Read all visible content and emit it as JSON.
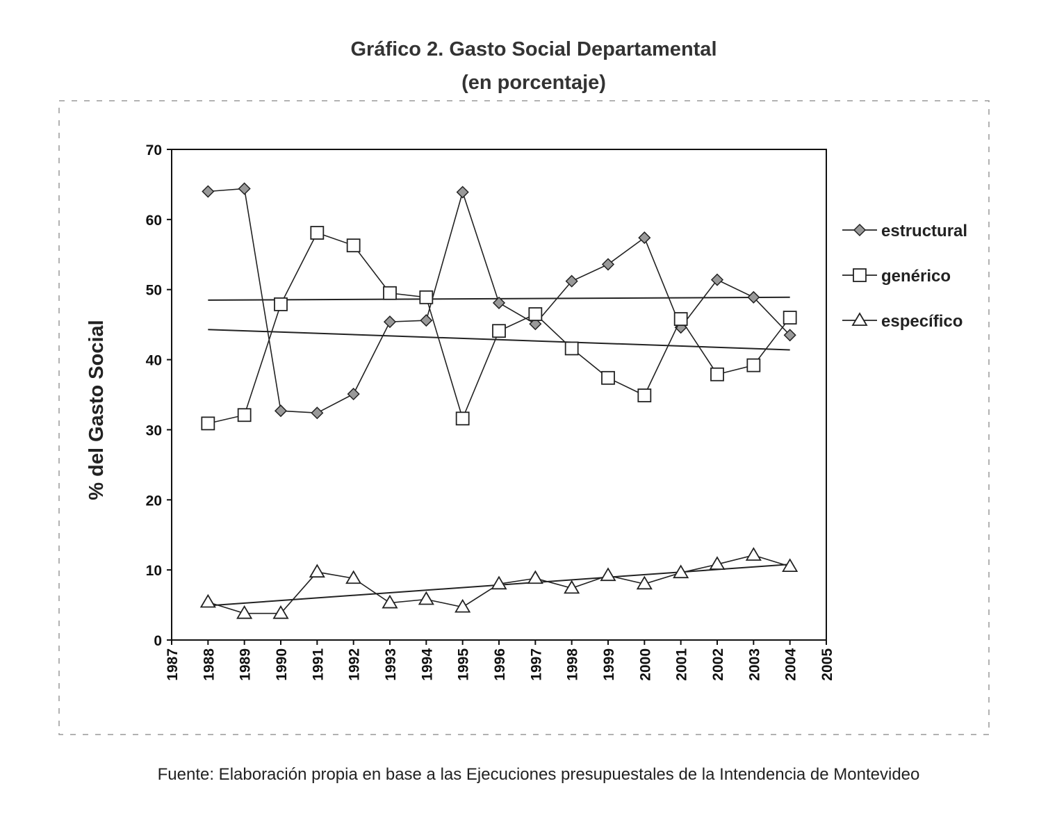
{
  "chart_data": {
    "type": "line",
    "title": "Gráfico 2. Gasto Social Departamental",
    "subtitle": "(en porcentaje)",
    "xlabel": "",
    "ylabel": "% del Gasto Social",
    "xlim": [
      1987,
      2005
    ],
    "ylim": [
      0,
      70
    ],
    "xticks": [
      1987,
      1988,
      1989,
      1990,
      1991,
      1992,
      1993,
      1994,
      1995,
      1996,
      1997,
      1998,
      1999,
      2000,
      2001,
      2002,
      2003,
      2004,
      2005
    ],
    "yticks": [
      0,
      10,
      20,
      30,
      40,
      50,
      60,
      70
    ],
    "grid": false,
    "legend_position": "right",
    "x": [
      1988,
      1989,
      1990,
      1991,
      1992,
      1993,
      1994,
      1995,
      1996,
      1997,
      1998,
      1999,
      2000,
      2001,
      2002,
      2003,
      2004
    ],
    "series": [
      {
        "name": "estructural",
        "marker": "diamond",
        "values": [
          64.0,
          64.4,
          32.7,
          32.4,
          35.1,
          45.4,
          45.6,
          63.9,
          48.1,
          45.1,
          51.2,
          53.6,
          57.4,
          44.6,
          51.4,
          48.9,
          43.5
        ],
        "trend": [
          48.5,
          48.9
        ]
      },
      {
        "name": "genérico",
        "marker": "square",
        "values": [
          30.9,
          32.1,
          47.9,
          58.1,
          56.3,
          49.5,
          48.9,
          31.6,
          44.1,
          46.5,
          41.6,
          37.4,
          34.9,
          45.8,
          37.9,
          39.2,
          46.0
        ],
        "trend": [
          44.3,
          41.4
        ]
      },
      {
        "name": "específico",
        "marker": "triangle",
        "values": [
          5.4,
          3.8,
          3.8,
          9.7,
          8.8,
          5.3,
          5.8,
          4.7,
          8.0,
          8.8,
          7.4,
          9.2,
          8.0,
          9.6,
          10.8,
          12.1,
          10.5
        ],
        "trend": [
          4.9,
          10.8
        ]
      }
    ],
    "source": "Fuente: Elaboración propia en base a las Ejecuciones presupuestales de la Intendencia de Montevideo"
  }
}
